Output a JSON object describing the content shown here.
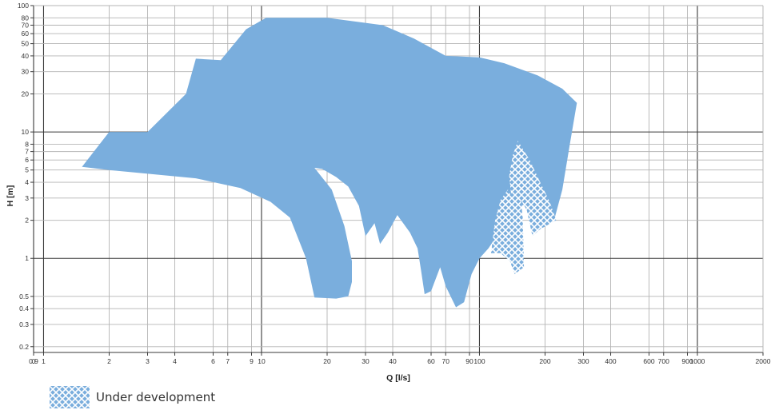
{
  "chart_data": {
    "type": "area",
    "xlabel": "Q [l/s]",
    "ylabel": "H [m]",
    "x_scale": "log",
    "y_scale": "log",
    "xlim": [
      0.9,
      2000
    ],
    "ylim": [
      0.18,
      100
    ],
    "grid": true,
    "x_ticks": [
      "0",
      "0.9",
      "1",
      "2",
      "3",
      "4",
      "6",
      "7",
      "9",
      "10",
      "20",
      "30",
      "40",
      "60",
      "70",
      "90",
      "100",
      "200",
      "300",
      "400",
      "600",
      "700",
      "900",
      "1000",
      "2000"
    ],
    "y_ticks": [
      "0.2",
      "0.3",
      "0.4",
      "0.5",
      "1",
      "2",
      "3",
      "4",
      "5",
      "6",
      "7",
      "8",
      "10",
      "20",
      "30",
      "40",
      "50",
      "60",
      "70",
      "80",
      "100"
    ],
    "series": [
      {
        "name": "",
        "color": "#7aaedd",
        "fill_pattern": "solid",
        "outline": [
          [
            1.5,
            5.3
          ],
          [
            2.0,
            10
          ],
          [
            3.0,
            10
          ],
          [
            4.5,
            20
          ],
          [
            5.0,
            38
          ],
          [
            6.5,
            37
          ],
          [
            8.5,
            65
          ],
          [
            10.5,
            80
          ],
          [
            20,
            80
          ],
          [
            36,
            70
          ],
          [
            50,
            55
          ],
          [
            70,
            40
          ],
          [
            100,
            39
          ],
          [
            130,
            35
          ],
          [
            185,
            28
          ],
          [
            240,
            22
          ],
          [
            280,
            17
          ],
          [
            260,
            8
          ],
          [
            240,
            3.5
          ],
          [
            220,
            2
          ],
          [
            205,
            2.5
          ],
          [
            175,
            2.9
          ],
          [
            150,
            2.5
          ],
          [
            130,
            1.8
          ],
          [
            120,
            1.5
          ],
          [
            110,
            1.2
          ],
          [
            100,
            1.0
          ],
          [
            92,
            0.75
          ],
          [
            85,
            0.45
          ],
          [
            78,
            0.41
          ],
          [
            70,
            0.6
          ],
          [
            66,
            0.85
          ],
          [
            60,
            0.55
          ],
          [
            56,
            0.52
          ],
          [
            54,
            0.8
          ],
          [
            52,
            1.2
          ],
          [
            48,
            1.6
          ],
          [
            42,
            2.2
          ],
          [
            38,
            1.6
          ],
          [
            35,
            1.3
          ],
          [
            33,
            1.9
          ],
          [
            30,
            1.5
          ],
          [
            28,
            2.6
          ],
          [
            25,
            3.7
          ],
          [
            22,
            4.4
          ],
          [
            19,
            5.1
          ],
          [
            17.5,
            5.2
          ],
          [
            21,
            3.5
          ],
          [
            24,
            1.8
          ],
          [
            26,
            0.95
          ],
          [
            26,
            0.65
          ],
          [
            25,
            0.5
          ],
          [
            22,
            0.48
          ],
          [
            17.5,
            0.49
          ],
          [
            16,
            1.0
          ],
          [
            13.5,
            2.1
          ],
          [
            11,
            2.8
          ],
          [
            8,
            3.6
          ],
          [
            5,
            4.3
          ],
          [
            2,
            5.0
          ]
        ]
      },
      {
        "name": "Under development",
        "color": "#7aaedd",
        "fill_pattern": "crosshatch",
        "outline": [
          [
            150,
            8.5
          ],
          [
            170,
            6.0
          ],
          [
            190,
            4.0
          ],
          [
            210,
            2.8
          ],
          [
            225,
            2.0
          ],
          [
            190,
            1.7
          ],
          [
            175,
            1.5
          ],
          [
            165,
            2.4
          ],
          [
            155,
            2.9
          ],
          [
            158,
            2.1
          ],
          [
            160,
            0.85
          ],
          [
            145,
            0.75
          ],
          [
            138,
            0.95
          ],
          [
            125,
            1.1
          ],
          [
            113,
            1.1
          ],
          [
            118,
            2.0
          ],
          [
            125,
            2.9
          ],
          [
            135,
            3.5
          ],
          [
            140,
            3.1
          ],
          [
            137,
            4.5
          ],
          [
            142,
            6.5
          ]
        ]
      }
    ]
  },
  "legend": {
    "label": "Under development"
  }
}
